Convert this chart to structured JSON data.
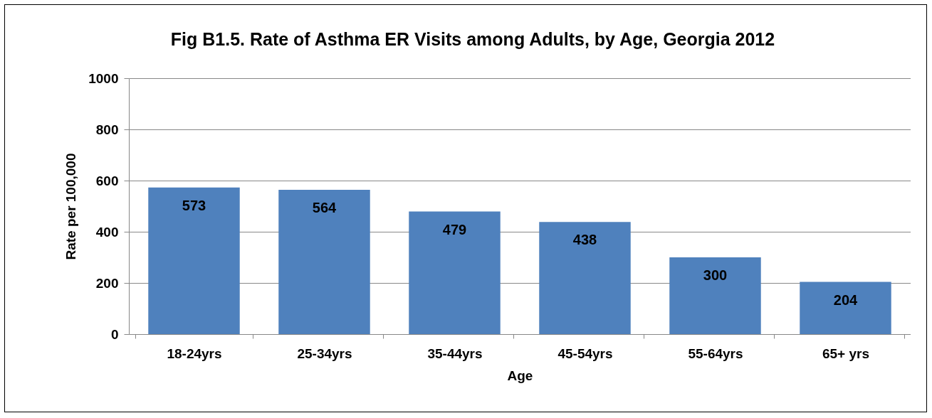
{
  "chart_data": {
    "type": "bar",
    "title": "Fig B1.5. Rate of Asthma ER Visits among Adults, by Age, Georgia 2012",
    "xlabel": "Age",
    "ylabel": "Rate per 100,000",
    "categories": [
      "18-24yrs",
      "25-34yrs",
      "35-44yrs",
      "45-54yrs",
      "55-64yrs",
      "65+ yrs"
    ],
    "values": [
      573,
      564,
      479,
      438,
      300,
      204
    ],
    "color": "#4f81bd",
    "ylim": [
      0,
      1000
    ],
    "yticks": [
      0,
      200,
      400,
      600,
      800,
      1000
    ],
    "grid": "y",
    "data_labels": true
  }
}
